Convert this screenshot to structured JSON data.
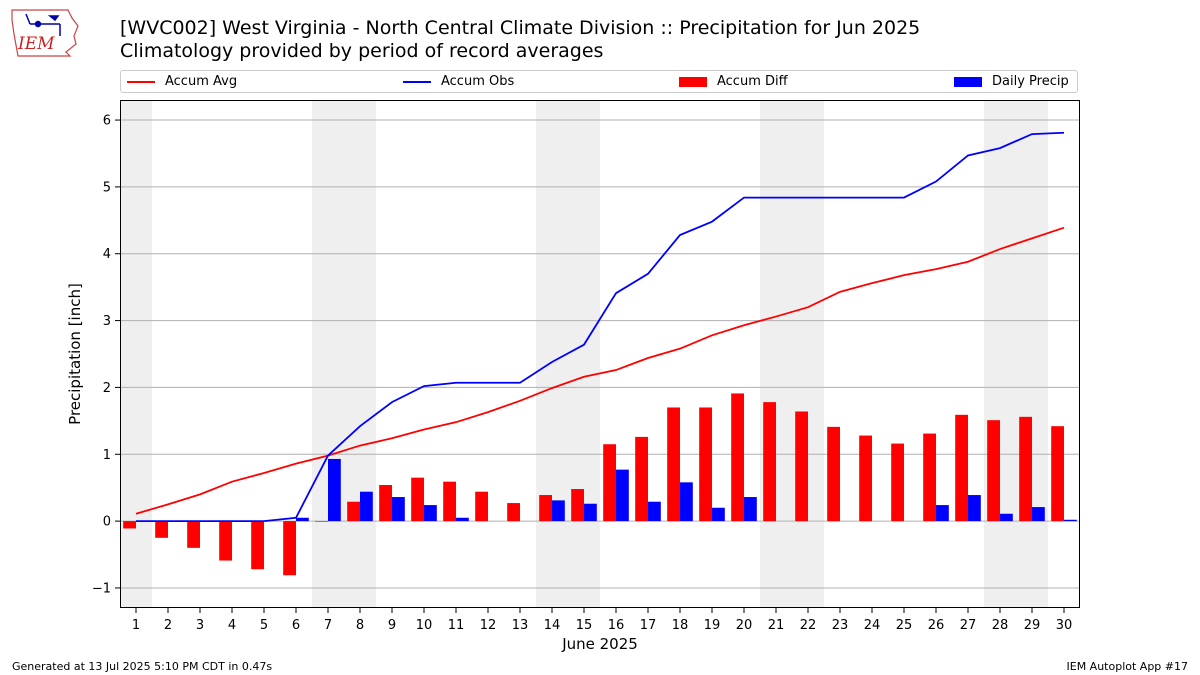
{
  "header": {
    "logo_text": "IEM",
    "title_line1": "[WVC002] West Virginia - North Central Climate Division :: Precipitation for Jun 2025",
    "title_line2": "Climatology provided by period of record averages"
  },
  "footer": {
    "generated": "Generated at 13 Jul 2025 5:10 PM CDT in 0.47s",
    "app": "IEM Autoplot App #17"
  },
  "colors": {
    "avg": "#ff0000",
    "obs": "#0000ff",
    "diff": "#ff0000",
    "daily": "#0000ff",
    "weekend_band": "#efefef",
    "grid": "#b0b0b0"
  },
  "chart_data": {
    "type": "bar",
    "xlabel": "June 2025",
    "ylabel": "Precipitation [inch]",
    "xlim": [
      0.5,
      30.5
    ],
    "ylim": [
      -1.3,
      6.3
    ],
    "yticks": [
      -1,
      0,
      1,
      2,
      3,
      4,
      5,
      6
    ],
    "grid": true,
    "legend_position": "top",
    "days": [
      1,
      2,
      3,
      4,
      5,
      6,
      7,
      8,
      9,
      10,
      11,
      12,
      13,
      14,
      15,
      16,
      17,
      18,
      19,
      20,
      21,
      22,
      23,
      24,
      25,
      26,
      27,
      28,
      29,
      30
    ],
    "weekend_days": [
      1,
      7,
      8,
      14,
      15,
      21,
      22,
      28,
      29
    ],
    "series": [
      {
        "name": "Accum Avg",
        "kind": "line",
        "values": [
          0.11,
          0.25,
          0.4,
          0.59,
          0.72,
          0.86,
          0.98,
          1.13,
          1.24,
          1.37,
          1.48,
          1.63,
          1.8,
          1.99,
          2.16,
          2.26,
          2.44,
          2.58,
          2.78,
          2.93,
          3.06,
          3.2,
          3.43,
          3.56,
          3.68,
          3.77,
          3.88,
          4.07,
          4.23,
          4.39
        ]
      },
      {
        "name": "Accum Obs",
        "kind": "line",
        "values": [
          0.0,
          0.0,
          0.0,
          0.0,
          0.0,
          0.05,
          0.98,
          1.42,
          1.78,
          2.02,
          2.07,
          2.07,
          2.07,
          2.38,
          2.64,
          3.41,
          3.7,
          4.28,
          4.48,
          4.84,
          4.84,
          4.84,
          4.84,
          4.84,
          4.84,
          5.08,
          5.47,
          5.58,
          5.79,
          5.81
        ]
      },
      {
        "name": "Accum Diff",
        "kind": "bar",
        "values": [
          -0.11,
          -0.25,
          -0.4,
          -0.59,
          -0.72,
          -0.81,
          0.0,
          0.29,
          0.54,
          0.65,
          0.59,
          0.44,
          0.27,
          0.39,
          0.48,
          1.15,
          1.26,
          1.7,
          1.7,
          1.91,
          1.78,
          1.64,
          1.41,
          1.28,
          1.16,
          1.31,
          1.59,
          1.51,
          1.56,
          1.42
        ]
      },
      {
        "name": "Daily Precip",
        "kind": "bar",
        "values": [
          0.0,
          0.0,
          0.0,
          0.0,
          0.0,
          0.05,
          0.93,
          0.44,
          0.36,
          0.24,
          0.05,
          0.0,
          0.0,
          0.31,
          0.26,
          0.77,
          0.29,
          0.58,
          0.2,
          0.36,
          0.0,
          0.0,
          0.0,
          0.0,
          0.0,
          0.24,
          0.39,
          0.11,
          0.21,
          0.02
        ]
      }
    ]
  }
}
